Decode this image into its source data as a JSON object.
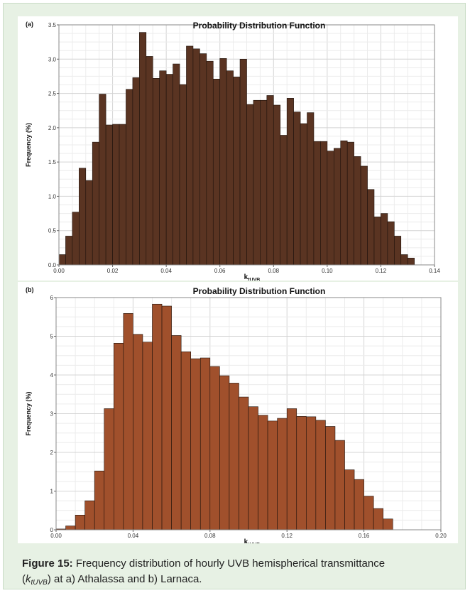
{
  "caption": {
    "label": "Figure 15:",
    "text": "Frequency distribution of hourly UVB hemispherical transmittance",
    "paren_open": "(",
    "symbol": "k",
    "symbol_sub": "tUVB",
    "rest": ") at a) Athalassa and b) Larnaca."
  },
  "colors": {
    "panel_a_bar": "#5a3422",
    "panel_b_bar": "#a0502c",
    "background": "#e7f1e4"
  },
  "chart_data": [
    {
      "type": "bar",
      "panel_label": "(a)",
      "title": "Probability Distribution Function",
      "xlabel": "k",
      "xlabel_sub": "tUVB",
      "ylabel": "Frequency (%)",
      "xlim": [
        0,
        0.14
      ],
      "ylim": [
        0,
        3.5
      ],
      "xticks": [
        "0.00",
        "0.02",
        "0.04",
        "0.06",
        "0.08",
        "0.10",
        "0.12",
        "0.14"
      ],
      "yticks": [
        "0.0",
        "0.5",
        "1.0",
        "1.5",
        "2.0",
        "2.5",
        "3.0",
        "3.5"
      ],
      "bin_width": 0.0025,
      "x": [
        0.0,
        0.0025,
        0.005,
        0.0075,
        0.01,
        0.0125,
        0.015,
        0.0175,
        0.02,
        0.0225,
        0.025,
        0.0275,
        0.03,
        0.0325,
        0.035,
        0.0375,
        0.04,
        0.0425,
        0.045,
        0.0475,
        0.05,
        0.0525,
        0.055,
        0.0575,
        0.06,
        0.0625,
        0.065,
        0.0675,
        0.07,
        0.0725,
        0.075,
        0.0775,
        0.08,
        0.0825,
        0.085,
        0.0875,
        0.09,
        0.0925,
        0.095,
        0.0975,
        0.1,
        0.1025,
        0.105,
        0.1075,
        0.11,
        0.1125,
        0.115,
        0.1175,
        0.12,
        0.1225,
        0.125,
        0.1275,
        0.13
      ],
      "values": [
        0.15,
        0.42,
        0.77,
        1.41,
        1.23,
        1.79,
        2.49,
        2.04,
        2.05,
        2.05,
        2.56,
        2.73,
        3.39,
        3.04,
        2.72,
        2.83,
        2.78,
        2.93,
        2.63,
        3.19,
        3.15,
        3.08,
        2.97,
        2.71,
        3.01,
        2.83,
        2.74,
        3.0,
        2.34,
        2.4,
        2.4,
        2.47,
        2.33,
        1.89,
        2.43,
        2.23,
        2.06,
        2.22,
        1.8,
        1.8,
        1.66,
        1.7,
        1.81,
        1.79,
        1.58,
        1.44,
        1.1,
        0.7,
        0.75,
        0.63,
        0.42,
        0.15,
        0.1
      ]
    },
    {
      "type": "bar",
      "panel_label": "(b)",
      "title": "Probability Distribution Function",
      "xlabel": "k",
      "xlabel_sub": "tUVB",
      "ylabel": "Frequency (%)",
      "xlim": [
        0,
        0.2
      ],
      "ylim": [
        0,
        6
      ],
      "xticks": [
        "0.00",
        "0.04",
        "0.08",
        "0.12",
        "0.16",
        "0.20"
      ],
      "yticks": [
        "0",
        "1",
        "2",
        "3",
        "4",
        "5",
        "6"
      ],
      "bin_width": 0.005,
      "x": [
        0.0,
        0.005,
        0.01,
        0.015,
        0.02,
        0.025,
        0.03,
        0.035,
        0.04,
        0.045,
        0.05,
        0.055,
        0.06,
        0.065,
        0.07,
        0.075,
        0.08,
        0.085,
        0.09,
        0.095,
        0.1,
        0.105,
        0.11,
        0.115,
        0.12,
        0.125,
        0.13,
        0.135,
        0.14,
        0.145,
        0.15,
        0.155,
        0.16,
        0.165,
        0.17
      ],
      "values": [
        0.02,
        0.1,
        0.38,
        0.75,
        1.52,
        3.13,
        4.82,
        5.59,
        5.05,
        4.85,
        5.83,
        5.78,
        5.02,
        4.6,
        4.42,
        4.44,
        4.22,
        3.98,
        3.79,
        3.43,
        3.18,
        2.96,
        2.81,
        2.88,
        3.13,
        2.93,
        2.92,
        2.83,
        2.67,
        2.31,
        1.55,
        1.3,
        0.87,
        0.55,
        0.28
      ]
    }
  ]
}
